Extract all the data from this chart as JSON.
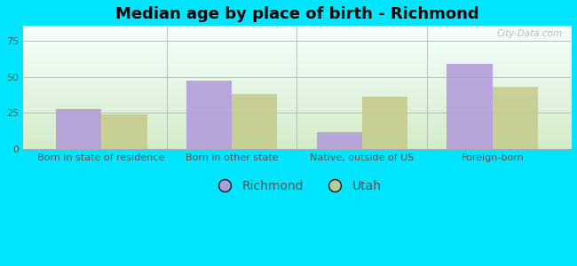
{
  "title": "Median age by place of birth - Richmond",
  "categories": [
    "Born in state of residence",
    "Born in other state",
    "Native, outside of US",
    "Foreign-born"
  ],
  "richmond_values": [
    28,
    47,
    12,
    59
  ],
  "utah_values": [
    24,
    38,
    36,
    43
  ],
  "richmond_color": "#b39ddb",
  "utah_color": "#c5cc8e",
  "bar_width": 0.35,
  "ylim": [
    0,
    85
  ],
  "yticks": [
    0,
    25,
    50,
    75
  ],
  "bg_color": "#00e5ff",
  "grid_color": "#cccccc",
  "title_fontsize": 13,
  "legend_fontsize": 10,
  "tick_fontsize": 8,
  "watermark_text": "City-Data.com",
  "plot_grad_top": "#f5fffe",
  "plot_grad_bottom": "#d4ecca"
}
